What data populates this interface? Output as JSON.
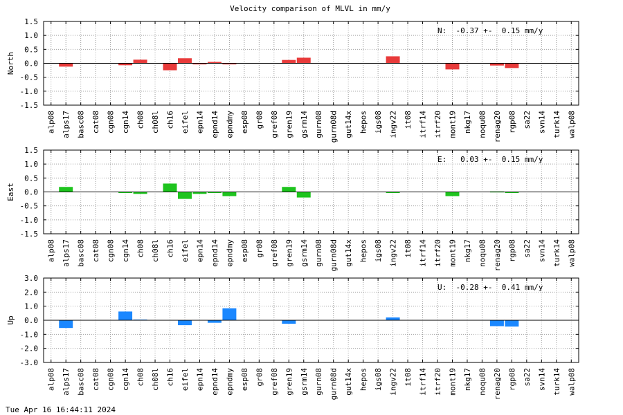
{
  "chart_data": {
    "title": "Velocity comparison of MLVL in mm/y",
    "type": "bar",
    "categories": [
      "alp08",
      "alps17",
      "basc08",
      "cat08",
      "cgn08",
      "cgn14",
      "ch08",
      "ch08l",
      "ch16",
      "eifel",
      "epn14",
      "epnd14",
      "epndmy",
      "esp08",
      "gr08",
      "gref08",
      "gren19",
      "gsrm14",
      "gurn08",
      "gurn08d",
      "gut14x",
      "hepos",
      "igs08",
      "ingv22",
      "it08",
      "itrf14",
      "itrf20",
      "mont19",
      "nkg17",
      "noqu08",
      "renag20",
      "rgp08",
      "sa22",
      "svn14",
      "turk14",
      "walp08"
    ],
    "panels": [
      {
        "name": "North",
        "ylabel": "North",
        "ylim": [
          -1.5,
          1.5
        ],
        "yticks": [
          "1.5",
          "1.0",
          "0.5",
          "0.0",
          "-0.5",
          "-1.0",
          "-1.5"
        ],
        "color": "#e83a3a",
        "annotation": "N:  -0.37 +-  0.15 mm/y",
        "values": [
          null,
          -0.12,
          null,
          null,
          null,
          -0.07,
          0.13,
          null,
          -0.25,
          0.18,
          -0.04,
          0.05,
          -0.04,
          null,
          null,
          null,
          0.12,
          0.2,
          null,
          null,
          null,
          null,
          null,
          0.25,
          null,
          null,
          null,
          -0.22,
          null,
          null,
          -0.08,
          -0.17,
          null,
          null,
          null,
          null
        ]
      },
      {
        "name": "East",
        "ylabel": "East",
        "ylim": [
          -1.5,
          1.5
        ],
        "yticks": [
          "1.5",
          "1.0",
          "0.5",
          "0.0",
          "-0.5",
          "-1.0",
          "-1.5"
        ],
        "color": "#1ec41e",
        "annotation": "E:   0.03 +-  0.15 mm/y",
        "values": [
          null,
          0.18,
          null,
          null,
          null,
          -0.03,
          -0.07,
          null,
          0.3,
          -0.25,
          -0.07,
          -0.03,
          -0.15,
          null,
          null,
          null,
          0.18,
          -0.2,
          null,
          null,
          null,
          null,
          null,
          -0.03,
          null,
          null,
          null,
          -0.15,
          null,
          null,
          0.02,
          -0.03,
          null,
          null,
          null,
          null
        ]
      },
      {
        "name": "Up",
        "ylabel": "Up",
        "ylim": [
          -3.0,
          3.0
        ],
        "yticks": [
          "3.0",
          "2.0",
          "1.0",
          "0.0",
          "-1.0",
          "-2.0",
          "-3.0"
        ],
        "color": "#1a87ff",
        "annotation": "U:  -0.28 +-  0.41 mm/y",
        "values": [
          null,
          -0.55,
          null,
          null,
          null,
          0.62,
          0.05,
          null,
          null,
          -0.35,
          null,
          -0.18,
          0.85,
          null,
          null,
          null,
          -0.25,
          null,
          null,
          null,
          null,
          null,
          null,
          0.2,
          null,
          null,
          null,
          null,
          null,
          null,
          -0.42,
          -0.45,
          null,
          null,
          null,
          null
        ]
      }
    ],
    "grid": true
  },
  "footer": {
    "timestamp": "Tue Apr 16 16:44:11 2024"
  }
}
